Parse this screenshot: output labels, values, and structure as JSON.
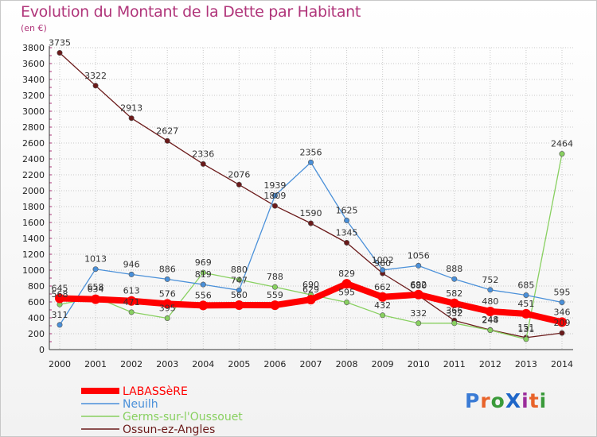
{
  "title": "Evolution du Montant de la Dette par Habitant",
  "unit": "(en €)",
  "logo": {
    "text": "ProXiti",
    "colors": [
      "#3a7bd5",
      "#e8632a",
      "#3a9a3a",
      "#1e66c8",
      "#9b2d9b",
      "#e8632a",
      "#3a9a3a"
    ]
  },
  "chart_data": {
    "type": "line",
    "title": "Evolution du Montant de la Dette par Habitant",
    "ylabel": "(en €)",
    "xlabel": "",
    "ylim": [
      0,
      3800
    ],
    "y_ticks": [
      0,
      200,
      400,
      600,
      800,
      1000,
      1200,
      1400,
      1600,
      1800,
      2000,
      2200,
      2400,
      2600,
      2800,
      3000,
      3200,
      3400,
      3600,
      3800
    ],
    "categories": [
      "2000",
      "2001",
      "2002",
      "2003",
      "2004",
      "2005",
      "2006",
      "2007",
      "2008",
      "2009",
      "2010",
      "2011",
      "2012",
      "2013",
      "2014"
    ],
    "grid": true,
    "legend_position": "bottom-left",
    "series": [
      {
        "name": "LABASSèRE",
        "color": "#ff0000",
        "values": [
          645,
          634,
          613,
          576,
          556,
          560,
          559,
          629,
          829,
          662,
          692,
          582,
          480,
          451,
          346
        ],
        "labels": [
          "645",
          "634",
          "613",
          "576",
          "556",
          "560",
          "559",
          "629",
          "829",
          "662",
          "692",
          "582",
          "480",
          "451",
          "346"
        ]
      },
      {
        "name": "Neuilh",
        "color": "#4a90d9",
        "values": [
          311,
          1013,
          946,
          886,
          819,
          747,
          1939,
          2356,
          1625,
          1002,
          1056,
          888,
          752,
          685,
          595
        ],
        "labels": [
          "311",
          "1013",
          "946",
          "886",
          "819",
          "747",
          "1939",
          "2356",
          "1625",
          "1002",
          "1056",
          "888",
          "752",
          "685",
          "595"
        ]
      },
      {
        "name": "Germs-sur-l'Oussouet",
        "color": "#88d060",
        "values": [
          568,
          658,
          471,
          395,
          969,
          880,
          788,
          690,
          595,
          432,
          332,
          332,
          244,
          131,
          2464
        ],
        "labels": [
          "568",
          "658",
          "471",
          "395",
          "969",
          "880",
          "788",
          "690",
          "595",
          "432",
          "332",
          "332",
          "244",
          "131",
          "2464"
        ]
      },
      {
        "name": "Ossun-ez-Angles",
        "color": "#6b1a1a",
        "values": [
          3735,
          3322,
          2913,
          2627,
          2336,
          2076,
          1809,
          1590,
          1345,
          960,
          680,
          366,
          248,
          151,
          209
        ],
        "labels": [
          "3735",
          "3322",
          "2913",
          "2627",
          "2336",
          "2076",
          "1809",
          "1590",
          "1345",
          "960",
          "680",
          "366",
          "248",
          "151",
          "209"
        ]
      }
    ]
  }
}
